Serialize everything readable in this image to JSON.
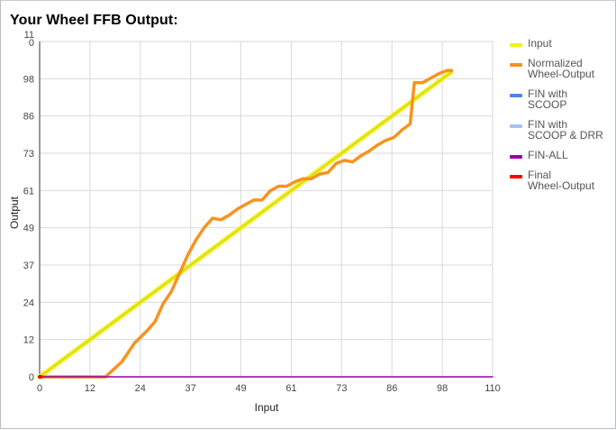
{
  "title": "Your Wheel FFB Output:",
  "chart_data": {
    "type": "line",
    "xlabel": "Input",
    "ylabel": "Output",
    "xlim": [
      0,
      110
    ],
    "ylim": [
      0,
      110
    ],
    "x_ticks": [
      "0",
      "12",
      "24",
      "37",
      "49",
      "61",
      "73",
      "86",
      "98",
      "110"
    ],
    "y_ticks": [
      "0",
      "12",
      "24",
      "37",
      "49",
      "61",
      "73",
      "86",
      "98",
      "11\n0"
    ],
    "grid": true,
    "legend_position": "right",
    "series": [
      {
        "name": "Input",
        "color": "#f2f20d",
        "points": [
          [
            0,
            0
          ],
          [
            100,
            100
          ]
        ]
      },
      {
        "name": "Normalized\nWheel-Output",
        "color": "#f7931e",
        "points": [
          [
            0,
            0
          ],
          [
            5,
            0
          ],
          [
            10,
            0
          ],
          [
            16,
            0
          ],
          [
            20,
            5
          ],
          [
            23,
            11
          ],
          [
            26,
            15
          ],
          [
            28,
            18
          ],
          [
            30,
            24
          ],
          [
            32,
            28
          ],
          [
            34,
            34
          ],
          [
            36,
            40
          ],
          [
            38,
            45
          ],
          [
            40,
            49
          ],
          [
            42,
            52
          ],
          [
            44,
            51.5
          ],
          [
            46,
            53
          ],
          [
            48,
            55
          ],
          [
            50,
            56.5
          ],
          [
            52,
            58
          ],
          [
            54,
            58
          ],
          [
            56,
            61
          ],
          [
            58,
            62.5
          ],
          [
            60,
            62.5
          ],
          [
            62,
            64
          ],
          [
            64,
            65
          ],
          [
            66,
            65
          ],
          [
            68,
            66.5
          ],
          [
            70,
            67
          ],
          [
            72,
            70
          ],
          [
            74,
            71
          ],
          [
            76,
            70.5
          ],
          [
            78,
            72.5
          ],
          [
            80,
            74
          ],
          [
            82,
            76
          ],
          [
            84,
            77.5
          ],
          [
            86,
            78.5
          ],
          [
            88,
            81
          ],
          [
            90,
            83
          ],
          [
            91,
            96.5
          ],
          [
            93,
            96.5
          ],
          [
            95,
            98
          ],
          [
            97,
            99.5
          ],
          [
            99,
            100.5
          ],
          [
            100,
            100.5
          ]
        ]
      },
      {
        "name": "FIN with\nSCOOP",
        "color": "#4a86e8",
        "points": []
      },
      {
        "name": "FIN with\nSCOOP & DRR",
        "color": "#a4c2f4",
        "points": []
      },
      {
        "name": "FIN-ALL",
        "color": "#9900a3",
        "points": [
          [
            0,
            0
          ],
          [
            110,
            0
          ]
        ]
      },
      {
        "name": "Final\nWheel-Output",
        "color": "#ff0000",
        "points": [
          [
            0,
            0
          ],
          [
            0.3,
            0
          ]
        ]
      }
    ]
  }
}
